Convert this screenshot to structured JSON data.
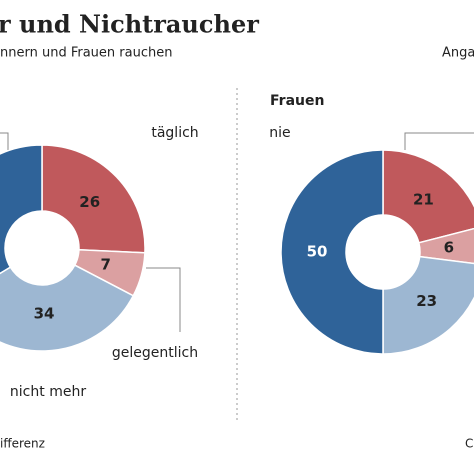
{
  "header": {
    "title": "r und Nichtraucher",
    "subtitle": "nnern und Frauen rauchen",
    "note": "Anga"
  },
  "footer": {
    "left": "ifferenz",
    "right": "C"
  },
  "chart_data": [
    {
      "type": "donut",
      "categories": [
        "täglich",
        "gelegentlich",
        "nicht mehr",
        null
      ],
      "values": [
        26,
        7,
        34,
        34
      ],
      "colors": [
        "#c0595c",
        "#dba0a1",
        "#9db7d2",
        "#2f6399"
      ]
    },
    {
      "type": "donut",
      "title": "Frauen",
      "categories": [
        null,
        null,
        null,
        "nie"
      ],
      "values": [
        21,
        6,
        23,
        50
      ],
      "colors": [
        "#c0595c",
        "#dba0a1",
        "#9db7d2",
        "#2f6399"
      ]
    }
  ]
}
